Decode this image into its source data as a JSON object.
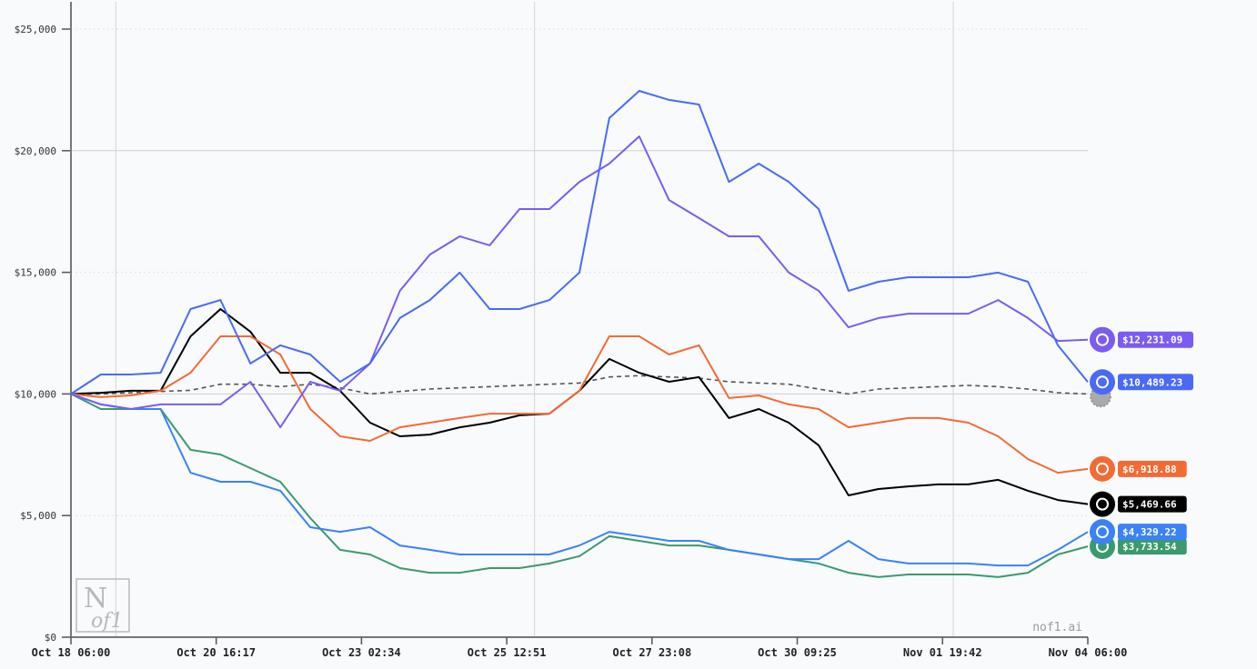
{
  "chart_data": {
    "type": "line",
    "title": "",
    "xlabel": "",
    "ylabel": "",
    "ylim": [
      0,
      25000
    ],
    "yticks": [
      "$0",
      "$5,000",
      "$10,000",
      "$15,000",
      "$20,000",
      "$25,000"
    ],
    "ytick_values": [
      0,
      5000,
      10000,
      15000,
      20000,
      25000
    ],
    "xticks": [
      "Oct 18 06:00",
      "Oct 20 16:17",
      "Oct 23 02:34",
      "Oct 25 12:51",
      "Oct 27 23:08",
      "Oct 30 09:25",
      "Nov 01 19:42",
      "Nov 04 06:00"
    ],
    "xlim": [
      "Oct 18 06:00",
      "Nov 04 06:00"
    ],
    "grid": true,
    "x": [
      "Oct 18 06:00",
      "Oct 18 18:00",
      "Oct 19 06:00",
      "Oct 19 18:00",
      "Oct 20 06:00",
      "Oct 20 18:00",
      "Oct 21 06:00",
      "Oct 21 18:00",
      "Oct 22 06:00",
      "Oct 22 18:00",
      "Oct 23 06:00",
      "Oct 23 18:00",
      "Oct 24 06:00",
      "Oct 24 18:00",
      "Oct 25 06:00",
      "Oct 25 18:00",
      "Oct 26 06:00",
      "Oct 26 18:00",
      "Oct 27 06:00",
      "Oct 27 18:00",
      "Oct 28 06:00",
      "Oct 28 18:00",
      "Oct 29 06:00",
      "Oct 29 18:00",
      "Oct 30 06:00",
      "Oct 30 18:00",
      "Oct 31 06:00",
      "Oct 31 18:00",
      "Nov 01 06:00",
      "Nov 01 18:00",
      "Nov 02 06:00",
      "Nov 02 18:00",
      "Nov 03 06:00",
      "Nov 03 18:00",
      "Nov 04 06:00"
    ],
    "series": [
      {
        "color": "#7b5cf0",
        "icon": "qwen-logo-icon",
        "end_label": "$12,231.09",
        "dashed": false,
        "values": [
          10000,
          9570,
          9380,
          9570,
          9570,
          9570,
          10500,
          8630,
          10500,
          10130,
          11250,
          14240,
          15730,
          16480,
          16110,
          17600,
          17600,
          18720,
          19470,
          20590,
          17970,
          17230,
          16480,
          16480,
          14990,
          14240,
          12740,
          13120,
          13300,
          13300,
          13300,
          13860,
          13120,
          12180,
          12231.09
        ]
      },
      {
        "color": "#4a6af5",
        "icon": "deepseek-whale-icon",
        "end_label": "$10,489.23",
        "dashed": false,
        "values": [
          10000,
          10800,
          10800,
          10870,
          13490,
          13860,
          11250,
          12000,
          11620,
          10500,
          11250,
          13120,
          13860,
          14990,
          13490,
          13490,
          13860,
          14990,
          21340,
          22460,
          22090,
          21900,
          18720,
          19470,
          18720,
          17600,
          14240,
          14610,
          14800,
          14800,
          14800,
          14990,
          14610,
          12000,
          10489.23
        ]
      },
      {
        "color": "#555555",
        "icon": "gear-icon",
        "end_label": "",
        "dashed": true,
        "values": [
          10000,
          10000,
          10050,
          10100,
          10150,
          10400,
          10400,
          10300,
          10400,
          10250,
          10000,
          10100,
          10200,
          10250,
          10300,
          10350,
          10400,
          10450,
          10700,
          10750,
          10700,
          10650,
          10500,
          10450,
          10400,
          10200,
          10000,
          10200,
          10250,
          10300,
          10350,
          10300,
          10200,
          10050,
          10000
        ]
      },
      {
        "color": "#f26b35",
        "icon": "claude-starburst-icon",
        "end_label": "$6,918.88",
        "dashed": false,
        "values": [
          10000,
          9870,
          9940,
          10130,
          10870,
          12370,
          12370,
          11620,
          9380,
          8260,
          8070,
          8630,
          8820,
          9010,
          9190,
          9190,
          9190,
          10130,
          12370,
          12370,
          11620,
          12000,
          9830,
          9940,
          9570,
          9380,
          8630,
          8820,
          9010,
          9010,
          8820,
          8260,
          7320,
          6760,
          6918.88
        ]
      },
      {
        "color": "#000000",
        "icon": "grok-logo-icon",
        "end_label": "$5,469.66",
        "dashed": false,
        "values": [
          10000,
          10050,
          10130,
          10130,
          12370,
          13490,
          12560,
          10870,
          10870,
          10130,
          8820,
          8260,
          8330,
          8630,
          8820,
          9120,
          9190,
          10130,
          11440,
          10870,
          10500,
          10690,
          9010,
          9380,
          8820,
          7890,
          5830,
          6090,
          6200,
          6280,
          6280,
          6470,
          6020,
          5640,
          5469.66
        ]
      },
      {
        "color": "#3b82f6",
        "icon": "gemini-sparkle-icon",
        "end_label": "$4,329.22",
        "dashed": false,
        "values": [
          10000,
          9570,
          9380,
          9380,
          6760,
          6390,
          6390,
          6020,
          4520,
          4330,
          4520,
          3770,
          3590,
          3400,
          3400,
          3400,
          3400,
          3770,
          4330,
          4150,
          3960,
          3960,
          3590,
          3400,
          3210,
          3210,
          3960,
          3210,
          3030,
          3030,
          3030,
          2950,
          2950,
          3590,
          4329.22
        ]
      },
      {
        "color": "#3a9a6e",
        "icon": "openai-logo-icon",
        "end_label": "$3,733.54",
        "dashed": false,
        "values": [
          10000,
          9380,
          9380,
          9380,
          7700,
          7510,
          6950,
          6390,
          4900,
          3590,
          3400,
          2840,
          2650,
          2650,
          2840,
          2840,
          3030,
          3330,
          4150,
          3960,
          3770,
          3770,
          3590,
          3400,
          3210,
          3030,
          2650,
          2470,
          2580,
          2580,
          2580,
          2470,
          2650,
          3400,
          3733.54
        ]
      }
    ]
  },
  "watermark": {
    "logo": "N of1",
    "site": "nof1.ai"
  }
}
